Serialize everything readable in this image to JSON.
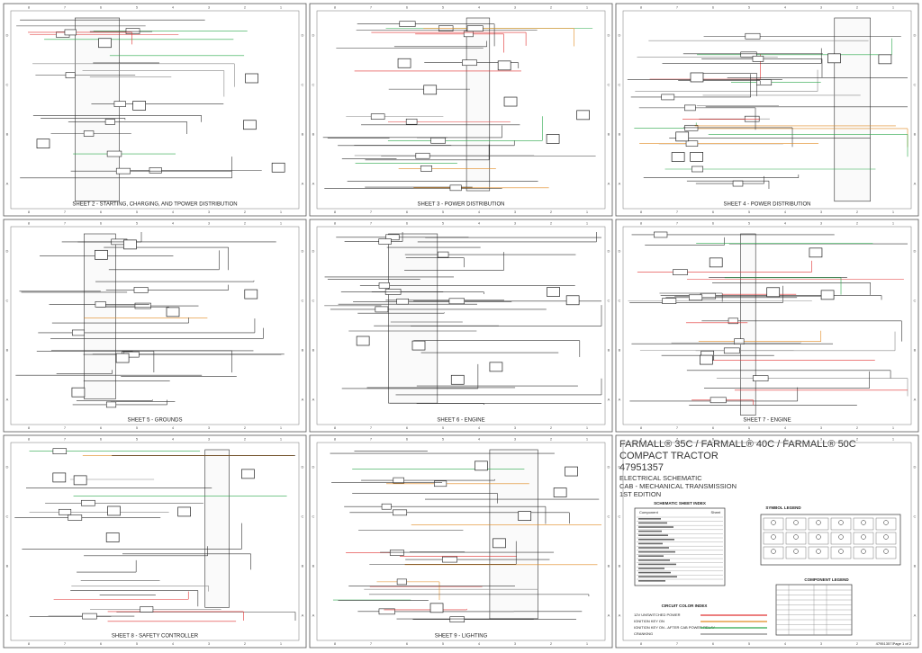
{
  "sheet_border": {
    "columns": [
      "8",
      "7",
      "6",
      "5",
      "4",
      "3",
      "2",
      "1"
    ],
    "rows": [
      "D",
      "C",
      "B",
      "A"
    ]
  },
  "sheets": [
    {
      "title": "SHEET 2 - STARTING, CHARGING, AND TPOWER DISTRIBUTION"
    },
    {
      "title": "SHEET 3 - POWER DISTRIBUTION"
    },
    {
      "title": "SHEET 4 - POWER DISTRIBUTION"
    },
    {
      "title": "SHEET 5 - GROUNDS"
    },
    {
      "title": "SHEET 6 - ENGINE"
    },
    {
      "title": "SHEET 7 - ENGINE"
    },
    {
      "title": "SHEET 8 - SAFETY CONTROLLER"
    },
    {
      "title": "SHEET 9 - LIGHTING"
    }
  ],
  "title_block": {
    "models": "FARMALL® 35C / FARMALL® 40C / FARMALL® 50C",
    "product": "COMPACT TRACTOR",
    "number": "47951357",
    "doc_type": "ELECTRICAL SCHEMATIC",
    "config": "CAB - MECHANICAL TRANSMISSION",
    "edition": "1ST EDITION",
    "sheet_index_title": "SCHEMATIC SHEET INDEX",
    "sheet_index_headers": [
      "Component",
      "Sheet"
    ],
    "symbol_legend_title": "SYMBOL LEGEND",
    "circuit_color_index_title": "CIRCUIT COLOR INDEX",
    "circuit_colors": [
      {
        "label": "12V UNSWITCHED POWER",
        "color": "#e03030"
      },
      {
        "label": "IGNITION KEY ON",
        "color": "#e08a20"
      },
      {
        "label": "IGNITION KEY ON - AFTER CAB POWER RELAY",
        "color": "#2aa84a"
      },
      {
        "label": "CRANKING",
        "color": "#888888"
      }
    ],
    "component_legend_title": "COMPONENT LEGEND",
    "footer": "47951357 Page 1 of 2"
  }
}
